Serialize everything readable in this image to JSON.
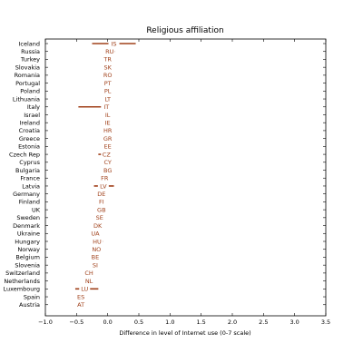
{
  "chart_data": {
    "type": "scatter",
    "title": "Religious affiliation",
    "xlabel": "Difference in level of Internet use (0-7 scale)",
    "ylabel": "",
    "xlim": [
      -1.0,
      3.5
    ],
    "xticks": [
      -1.0,
      -0.5,
      0.0,
      0.5,
      1.0,
      1.5,
      2.0,
      2.5,
      3.0,
      3.5
    ],
    "xtick_labels": [
      "−1.0",
      "−0.5",
      "0.0",
      "0.5",
      "1.0",
      "1.5",
      "2.0",
      "2.5",
      "3.0",
      "3.5"
    ],
    "grid": false,
    "color": "#a0401a",
    "points": [
      {
        "country": "Iceland",
        "code": "IS",
        "x": 0.1,
        "lo": -0.25,
        "hi": 0.45
      },
      {
        "country": "Russia",
        "code": "RU",
        "x": 0.03,
        "lo": -0.05,
        "hi": 0.12
      },
      {
        "country": "Turkey",
        "code": "TR",
        "x": 0.0,
        "lo": 0.0,
        "hi": 0.0
      },
      {
        "country": "Slovakia",
        "code": "SK",
        "x": 0.0,
        "lo": 0.0,
        "hi": 0.0
      },
      {
        "country": "Romania",
        "code": "RO",
        "x": 0.0,
        "lo": 0.0,
        "hi": 0.0
      },
      {
        "country": "Portugal",
        "code": "PT",
        "x": 0.0,
        "lo": 0.0,
        "hi": 0.0
      },
      {
        "country": "Poland",
        "code": "PL",
        "x": 0.0,
        "lo": 0.0,
        "hi": 0.0
      },
      {
        "country": "Lithuania",
        "code": "LT",
        "x": 0.0,
        "lo": 0.0,
        "hi": 0.0
      },
      {
        "country": "Italy",
        "code": "IT",
        "x": -0.02,
        "lo": -0.47,
        "hi": 0.03
      },
      {
        "country": "Israel",
        "code": "IL",
        "x": 0.0,
        "lo": 0.0,
        "hi": 0.0
      },
      {
        "country": "Ireland",
        "code": "IE",
        "x": 0.0,
        "lo": 0.0,
        "hi": 0.0
      },
      {
        "country": "Croatia",
        "code": "HR",
        "x": 0.0,
        "lo": 0.0,
        "hi": 0.0
      },
      {
        "country": "Greece",
        "code": "GR",
        "x": 0.0,
        "lo": 0.0,
        "hi": 0.0
      },
      {
        "country": "Estonia",
        "code": "EE",
        "x": 0.0,
        "lo": 0.0,
        "hi": 0.0
      },
      {
        "country": "Czech Rep",
        "code": "CZ",
        "x": -0.02,
        "lo": -0.15,
        "hi": 0.0
      },
      {
        "country": "Cyprus",
        "code": "CY",
        "x": 0.0,
        "lo": 0.0,
        "hi": 0.0
      },
      {
        "country": "Bulgaria",
        "code": "BG",
        "x": 0.0,
        "lo": 0.0,
        "hi": 0.0
      },
      {
        "country": "France",
        "code": "FR",
        "x": -0.05,
        "lo": -0.13,
        "hi": 0.03
      },
      {
        "country": "Latvia",
        "code": "LV",
        "x": -0.07,
        "lo": -0.22,
        "hi": 0.1
      },
      {
        "country": "Germany",
        "code": "DE",
        "x": -0.1,
        "lo": -0.15,
        "hi": -0.05
      },
      {
        "country": "Finland",
        "code": "FI",
        "x": -0.1,
        "lo": -0.17,
        "hi": -0.03
      },
      {
        "country": "UK",
        "code": "GB",
        "x": -0.1,
        "lo": -0.17,
        "hi": -0.02
      },
      {
        "country": "Sweden",
        "code": "SE",
        "x": -0.13,
        "lo": -0.19,
        "hi": -0.07
      },
      {
        "country": "Denmark",
        "code": "DK",
        "x": -0.16,
        "lo": -0.24,
        "hi": -0.08
      },
      {
        "country": "Ukraine",
        "code": "UA",
        "x": -0.2,
        "lo": -0.28,
        "hi": -0.12
      },
      {
        "country": "Hungary",
        "code": "HU",
        "x": -0.17,
        "lo": -0.25,
        "hi": -0.08
      },
      {
        "country": "Norway",
        "code": "NO",
        "x": -0.18,
        "lo": -0.24,
        "hi": -0.12
      },
      {
        "country": "Belgium",
        "code": "BE",
        "x": -0.2,
        "lo": -0.28,
        "hi": -0.12
      },
      {
        "country": "Slovenia",
        "code": "SI",
        "x": -0.2,
        "lo": -0.28,
        "hi": -0.12
      },
      {
        "country": "Switzerland",
        "code": "CH",
        "x": -0.3,
        "lo": -0.36,
        "hi": -0.24
      },
      {
        "country": "Netherlands",
        "code": "NL",
        "x": -0.3,
        "lo": -0.36,
        "hi": -0.24
      },
      {
        "country": "Luxembourg",
        "code": "LU",
        "x": -0.37,
        "lo": -0.52,
        "hi": -0.15
      },
      {
        "country": "Spain",
        "code": "ES",
        "x": -0.43,
        "lo": -0.49,
        "hi": -0.37
      },
      {
        "country": "Austria",
        "code": "AT",
        "x": -0.43,
        "lo": -0.51,
        "hi": -0.35
      }
    ]
  }
}
